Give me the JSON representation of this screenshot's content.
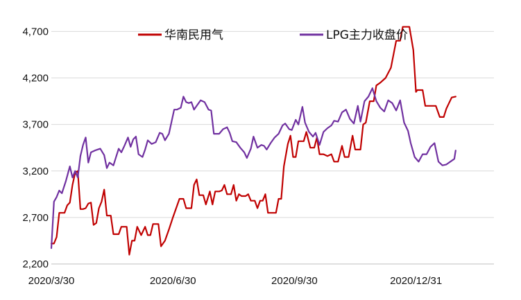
{
  "chart_data": {
    "type": "line",
    "title": "",
    "xlabel": "",
    "ylabel": "",
    "ylim": [
      2200,
      4800
    ],
    "xlim": [
      "2020-03-30",
      "2021-02-28"
    ],
    "y_ticks": [
      2200,
      2700,
      3200,
      3700,
      4200,
      4700
    ],
    "y_tick_labels": [
      "2,200",
      "2,700",
      "3,200",
      "3,700",
      "4,200",
      "4,700"
    ],
    "x_ticks": [
      "2020-03-30",
      "2020-06-30",
      "2020-09-30",
      "2020-12-31"
    ],
    "x_tick_labels": [
      "2020/3/30",
      "2020/6/30",
      "2020/9/30",
      "2020/12/31"
    ],
    "legend_position": "top",
    "grid": "horizontal",
    "series": [
      {
        "name": "华南民用气",
        "color": "#C00000",
        "points": [
          [
            "2020-03-30",
            2420
          ],
          [
            "2020-04-01",
            2420
          ],
          [
            "2020-04-03",
            2490
          ],
          [
            "2020-04-05",
            2750
          ],
          [
            "2020-04-09",
            2750
          ],
          [
            "2020-04-11",
            2830
          ],
          [
            "2020-04-13",
            2860
          ],
          [
            "2020-04-15",
            3050
          ],
          [
            "2020-04-17",
            3180
          ],
          [
            "2020-04-19",
            3200
          ],
          [
            "2020-04-21",
            2790
          ],
          [
            "2020-04-23",
            2790
          ],
          [
            "2020-04-25",
            2800
          ],
          [
            "2020-04-27",
            2850
          ],
          [
            "2020-04-29",
            2860
          ],
          [
            "2020-05-01",
            2620
          ],
          [
            "2020-05-03",
            2640
          ],
          [
            "2020-05-05",
            2800
          ],
          [
            "2020-05-07",
            2870
          ],
          [
            "2020-05-09",
            3000
          ],
          [
            "2020-05-11",
            2720
          ],
          [
            "2020-05-14",
            2720
          ],
          [
            "2020-05-16",
            2520
          ],
          [
            "2020-05-20",
            2520
          ],
          [
            "2020-05-22",
            2600
          ],
          [
            "2020-05-26",
            2600
          ],
          [
            "2020-05-28",
            2300
          ],
          [
            "2020-05-30",
            2450
          ],
          [
            "2020-06-01",
            2450
          ],
          [
            "2020-06-03",
            2600
          ],
          [
            "2020-06-06",
            2510
          ],
          [
            "2020-06-09",
            2600
          ],
          [
            "2020-06-11",
            2510
          ],
          [
            "2020-06-13",
            2510
          ],
          [
            "2020-06-15",
            2630
          ],
          [
            "2020-06-19",
            2630
          ],
          [
            "2020-06-21",
            2390
          ],
          [
            "2020-06-24",
            2450
          ],
          [
            "2020-06-27",
            2570
          ],
          [
            "2020-06-30",
            2700
          ],
          [
            "2020-07-03",
            2820
          ],
          [
            "2020-07-05",
            2900
          ],
          [
            "2020-07-08",
            2900
          ],
          [
            "2020-07-10",
            2800
          ],
          [
            "2020-07-14",
            2800
          ],
          [
            "2020-07-16",
            3050
          ],
          [
            "2020-07-18",
            3110
          ],
          [
            "2020-07-20",
            2940
          ],
          [
            "2020-07-23",
            2940
          ],
          [
            "2020-07-25",
            2840
          ],
          [
            "2020-07-28",
            2980
          ],
          [
            "2020-07-30",
            2840
          ],
          [
            "2020-08-01",
            2980
          ],
          [
            "2020-08-04",
            2980
          ],
          [
            "2020-08-06",
            2990
          ],
          [
            "2020-08-08",
            3050
          ],
          [
            "2020-08-10",
            2950
          ],
          [
            "2020-08-13",
            2950
          ],
          [
            "2020-08-15",
            3050
          ],
          [
            "2020-08-17",
            2880
          ],
          [
            "2020-08-19",
            2950
          ],
          [
            "2020-08-21",
            2930
          ],
          [
            "2020-08-24",
            2930
          ],
          [
            "2020-08-26",
            2950
          ],
          [
            "2020-08-28",
            2880
          ],
          [
            "2020-08-31",
            2880
          ],
          [
            "2020-09-02",
            2800
          ],
          [
            "2020-09-04",
            2880
          ],
          [
            "2020-09-06",
            2880
          ],
          [
            "2020-09-08",
            2950
          ],
          [
            "2020-09-10",
            2750
          ],
          [
            "2020-09-14",
            2750
          ],
          [
            "2020-09-16",
            2750
          ],
          [
            "2020-09-18",
            2900
          ],
          [
            "2020-09-20",
            2900
          ],
          [
            "2020-09-22",
            3250
          ],
          [
            "2020-09-25",
            3490
          ],
          [
            "2020-09-27",
            3580
          ],
          [
            "2020-09-29",
            3350
          ],
          [
            "2020-10-01",
            3350
          ],
          [
            "2020-10-03",
            3520
          ],
          [
            "2020-10-07",
            3520
          ],
          [
            "2020-10-09",
            3620
          ],
          [
            "2020-10-12",
            3450
          ],
          [
            "2020-10-15",
            3450
          ],
          [
            "2020-10-17",
            3560
          ],
          [
            "2020-10-19",
            3380
          ],
          [
            "2020-10-22",
            3380
          ],
          [
            "2020-10-25",
            3360
          ],
          [
            "2020-10-28",
            3380
          ],
          [
            "2020-10-30",
            3300
          ],
          [
            "2020-11-02",
            3300
          ],
          [
            "2020-11-05",
            3470
          ],
          [
            "2020-11-07",
            3350
          ],
          [
            "2020-11-10",
            3350
          ],
          [
            "2020-11-13",
            3580
          ],
          [
            "2020-11-15",
            3430
          ],
          [
            "2020-11-19",
            3430
          ],
          [
            "2020-11-21",
            3700
          ],
          [
            "2020-11-23",
            3720
          ],
          [
            "2020-11-26",
            3950
          ],
          [
            "2020-11-29",
            3950
          ],
          [
            "2020-12-01",
            4120
          ],
          [
            "2020-12-04",
            4150
          ],
          [
            "2020-12-08",
            4200
          ],
          [
            "2020-12-12",
            4310
          ],
          [
            "2020-12-16",
            4600
          ],
          [
            "2020-12-19",
            4600
          ],
          [
            "2020-12-21",
            4750
          ],
          [
            "2020-12-26",
            4750
          ],
          [
            "2020-12-29",
            4500
          ],
          [
            "2020-12-31",
            4050
          ],
          [
            "2021-01-01",
            4070
          ],
          [
            "2021-01-05",
            4070
          ],
          [
            "2021-01-07",
            3900
          ],
          [
            "2021-01-15",
            3900
          ],
          [
            "2021-01-18",
            3780
          ],
          [
            "2021-01-21",
            3780
          ],
          [
            "2021-01-23",
            3870
          ],
          [
            "2021-01-27",
            3990
          ],
          [
            "2021-01-30",
            4000
          ]
        ]
      },
      {
        "name": "LPG主力收盘价",
        "color": "#7030A0",
        "points": [
          [
            "2020-03-30",
            2370
          ],
          [
            "2020-04-01",
            2870
          ],
          [
            "2020-04-03",
            2920
          ],
          [
            "2020-04-05",
            2990
          ],
          [
            "2020-04-07",
            2960
          ],
          [
            "2020-04-10",
            3090
          ],
          [
            "2020-04-13",
            3250
          ],
          [
            "2020-04-15",
            3130
          ],
          [
            "2020-04-17",
            3200
          ],
          [
            "2020-04-19",
            3130
          ],
          [
            "2020-04-21",
            3360
          ],
          [
            "2020-04-23",
            3480
          ],
          [
            "2020-04-25",
            3560
          ],
          [
            "2020-04-27",
            3290
          ],
          [
            "2020-04-29",
            3400
          ],
          [
            "2020-05-02",
            3420
          ],
          [
            "2020-05-06",
            3440
          ],
          [
            "2020-05-09",
            3370
          ],
          [
            "2020-05-11",
            3230
          ],
          [
            "2020-05-13",
            3290
          ],
          [
            "2020-05-16",
            3260
          ],
          [
            "2020-05-18",
            3350
          ],
          [
            "2020-05-20",
            3440
          ],
          [
            "2020-05-22",
            3400
          ],
          [
            "2020-05-24",
            3460
          ],
          [
            "2020-05-27",
            3560
          ],
          [
            "2020-05-29",
            3460
          ],
          [
            "2020-05-31",
            3540
          ],
          [
            "2020-06-02",
            3570
          ],
          [
            "2020-06-04",
            3380
          ],
          [
            "2020-06-07",
            3350
          ],
          [
            "2020-06-09",
            3430
          ],
          [
            "2020-06-11",
            3530
          ],
          [
            "2020-06-14",
            3490
          ],
          [
            "2020-06-17",
            3510
          ],
          [
            "2020-06-20",
            3610
          ],
          [
            "2020-06-22",
            3600
          ],
          [
            "2020-06-24",
            3530
          ],
          [
            "2020-06-27",
            3600
          ],
          [
            "2020-06-29",
            3730
          ],
          [
            "2020-07-01",
            3860
          ],
          [
            "2020-07-03",
            3860
          ],
          [
            "2020-07-06",
            3880
          ],
          [
            "2020-07-08",
            4000
          ],
          [
            "2020-07-10",
            3940
          ],
          [
            "2020-07-12",
            3930
          ],
          [
            "2020-07-14",
            3940
          ],
          [
            "2020-07-16",
            3860
          ],
          [
            "2020-07-18",
            3900
          ],
          [
            "2020-07-21",
            3960
          ],
          [
            "2020-07-24",
            3940
          ],
          [
            "2020-07-27",
            3860
          ],
          [
            "2020-07-29",
            3850
          ],
          [
            "2020-07-31",
            3600
          ],
          [
            "2020-08-04",
            3600
          ],
          [
            "2020-08-07",
            3650
          ],
          [
            "2020-08-10",
            3670
          ],
          [
            "2020-08-12",
            3610
          ],
          [
            "2020-08-14",
            3520
          ],
          [
            "2020-08-17",
            3510
          ],
          [
            "2020-08-20",
            3450
          ],
          [
            "2020-08-23",
            3400
          ],
          [
            "2020-08-25",
            3340
          ],
          [
            "2020-08-28",
            3440
          ],
          [
            "2020-08-30",
            3570
          ],
          [
            "2020-09-02",
            3450
          ],
          [
            "2020-09-05",
            3480
          ],
          [
            "2020-09-07",
            3470
          ],
          [
            "2020-09-09",
            3430
          ],
          [
            "2020-09-12",
            3500
          ],
          [
            "2020-09-15",
            3560
          ],
          [
            "2020-09-18",
            3600
          ],
          [
            "2020-09-21",
            3690
          ],
          [
            "2020-09-23",
            3710
          ],
          [
            "2020-09-26",
            3650
          ],
          [
            "2020-09-28",
            3640
          ],
          [
            "2020-10-01",
            3750
          ],
          [
            "2020-10-03",
            3700
          ],
          [
            "2020-10-06",
            3890
          ],
          [
            "2020-10-08",
            3720
          ],
          [
            "2020-10-11",
            3620
          ],
          [
            "2020-10-14",
            3570
          ],
          [
            "2020-10-16",
            3610
          ],
          [
            "2020-10-19",
            3480
          ],
          [
            "2020-10-22",
            3620
          ],
          [
            "2020-10-25",
            3660
          ],
          [
            "2020-10-28",
            3690
          ],
          [
            "2020-10-30",
            3740
          ],
          [
            "2020-11-02",
            3730
          ],
          [
            "2020-11-05",
            3830
          ],
          [
            "2020-11-08",
            3860
          ],
          [
            "2020-11-11",
            3760
          ],
          [
            "2020-11-14",
            3710
          ],
          [
            "2020-11-17",
            3900
          ],
          [
            "2020-11-19",
            3730
          ],
          [
            "2020-11-22",
            3950
          ],
          [
            "2020-11-25",
            4000
          ],
          [
            "2020-11-28",
            4090
          ],
          [
            "2020-12-01",
            3950
          ],
          [
            "2020-12-04",
            3880
          ],
          [
            "2020-12-07",
            3840
          ],
          [
            "2020-12-10",
            3960
          ],
          [
            "2020-12-13",
            3930
          ],
          [
            "2020-12-16",
            3850
          ],
          [
            "2020-12-19",
            3960
          ],
          [
            "2020-12-22",
            3720
          ],
          [
            "2020-12-25",
            3630
          ],
          [
            "2020-12-27",
            3500
          ],
          [
            "2020-12-30",
            3350
          ],
          [
            "2021-01-02",
            3300
          ],
          [
            "2021-01-05",
            3380
          ],
          [
            "2021-01-08",
            3380
          ],
          [
            "2021-01-11",
            3460
          ],
          [
            "2021-01-14",
            3500
          ],
          [
            "2021-01-17",
            3300
          ],
          [
            "2021-01-20",
            3260
          ],
          [
            "2021-01-23",
            3270
          ],
          [
            "2021-01-26",
            3300
          ],
          [
            "2021-01-29",
            3330
          ],
          [
            "2021-01-30",
            3420
          ]
        ]
      }
    ]
  }
}
